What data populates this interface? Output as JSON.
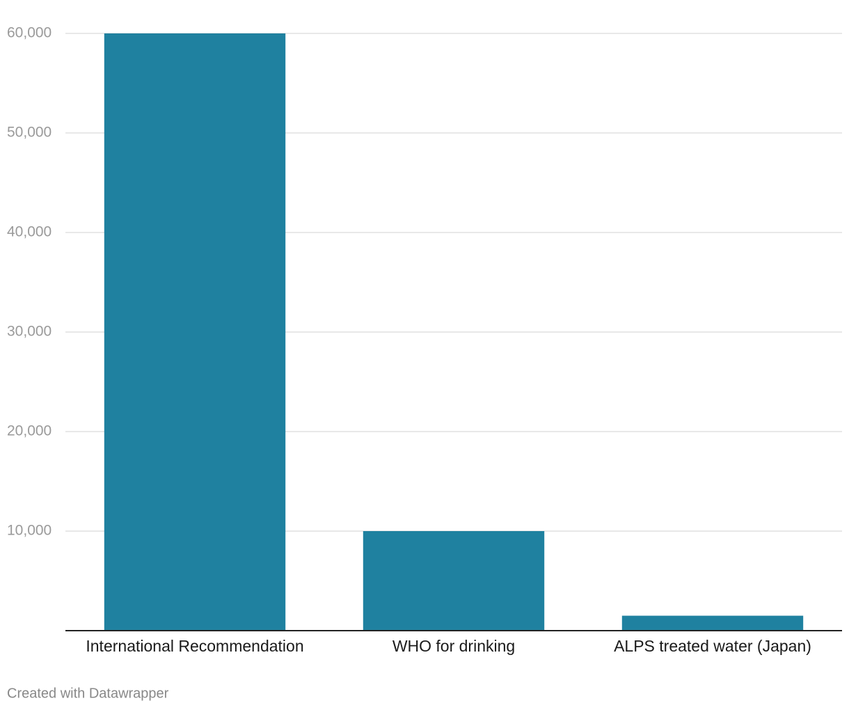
{
  "chart_data": {
    "type": "bar",
    "categories": [
      "International Recommendation",
      "WHO for drinking",
      "ALPS treated water (Japan)"
    ],
    "values": [
      60000,
      10000,
      1500
    ],
    "color": "#1f81a0",
    "ylim": [
      0,
      60000
    ],
    "yticks": [
      {
        "value": 10000,
        "label": "10,000"
      },
      {
        "value": 20000,
        "label": "20,000"
      },
      {
        "value": 30000,
        "label": "30,000"
      },
      {
        "value": 40000,
        "label": "40,000"
      },
      {
        "value": 50000,
        "label": "50,000"
      },
      {
        "value": 60000,
        "label": "60,000"
      }
    ],
    "grid": true,
    "footer": "Created with Datawrapper"
  }
}
